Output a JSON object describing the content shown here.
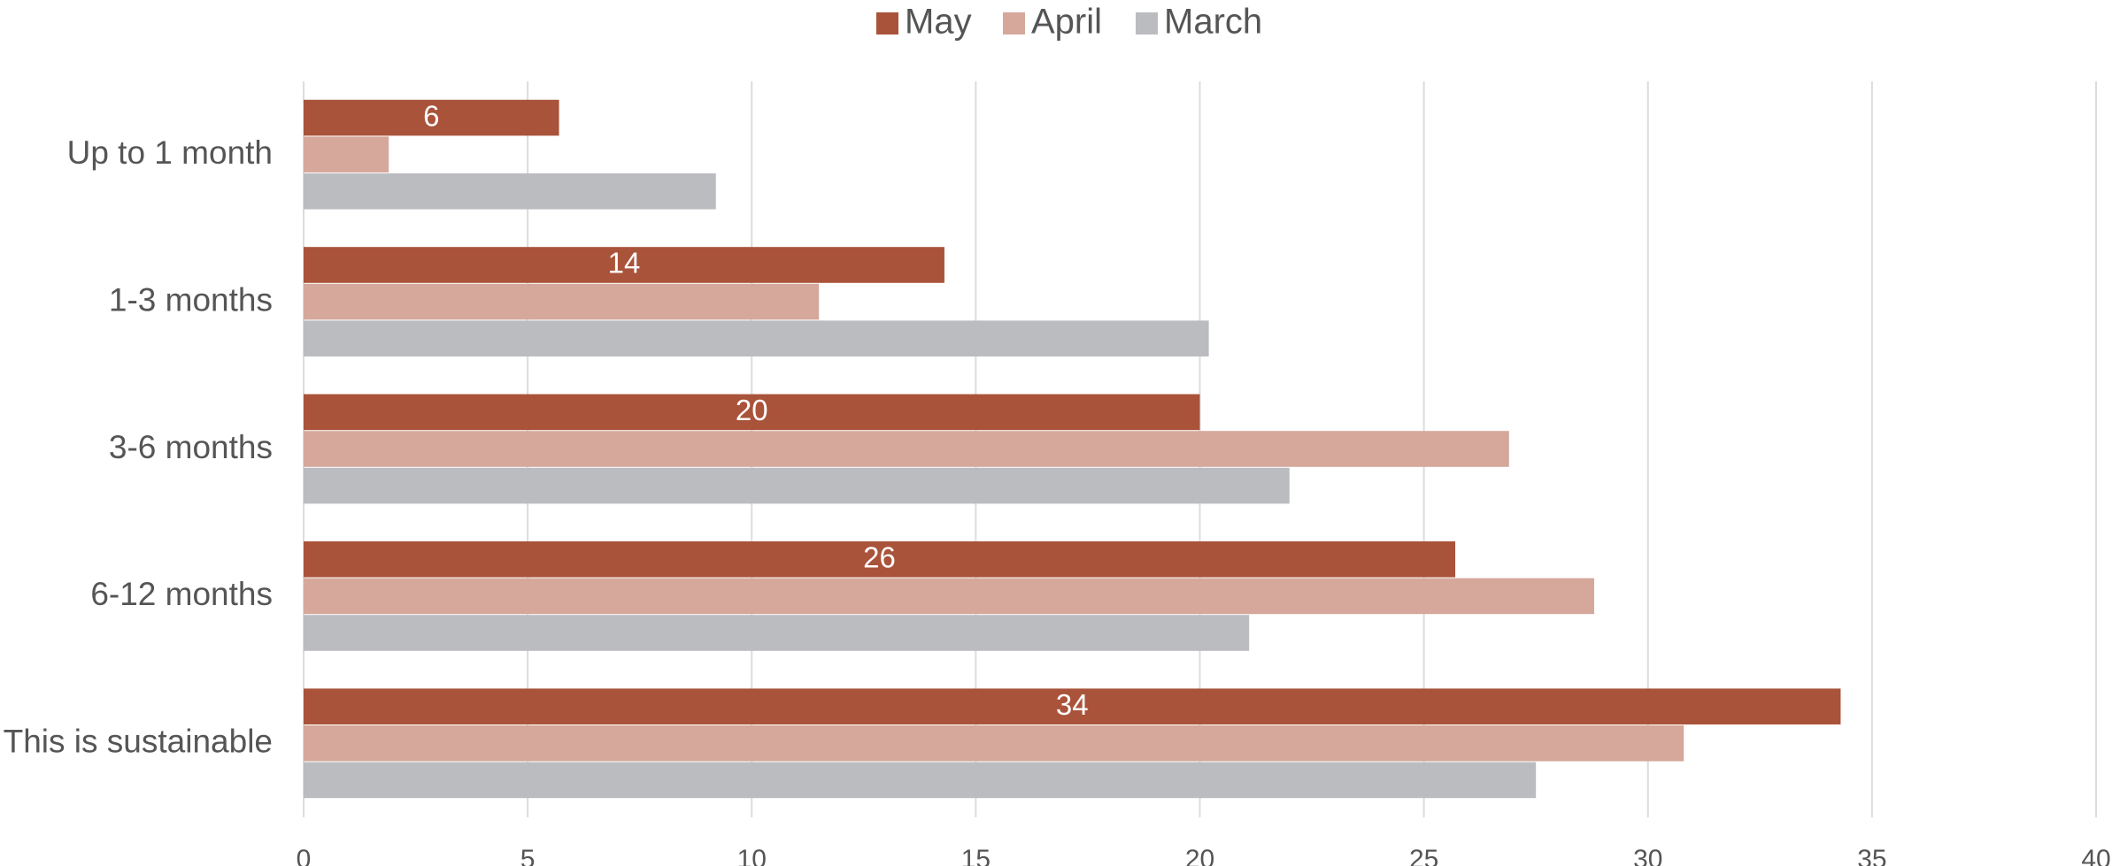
{
  "chart_data": {
    "type": "hbar",
    "categories": [
      "Up to 1 month",
      "1-3 months",
      "3-6 months",
      "6-12 months",
      "This is sustainable"
    ],
    "series": [
      {
        "name": "May",
        "color": "#a9533a",
        "values": [
          5.7,
          14.3,
          20,
          25.7,
          34.3
        ],
        "value_labels": [
          "6",
          "14",
          "20",
          "26",
          "34"
        ]
      },
      {
        "name": "April",
        "color": "#d5a89b",
        "values": [
          1.9,
          11.5,
          26.9,
          28.8,
          30.8
        ]
      },
      {
        "name": "March",
        "color": "#bbbcc0",
        "values": [
          9.2,
          20.2,
          22.0,
          21.1,
          27.5
        ]
      }
    ],
    "xlim": [
      0,
      40
    ],
    "xticks": [
      0,
      5,
      10,
      15,
      20,
      25,
      30,
      35,
      40
    ],
    "grid": true,
    "legend": "top"
  }
}
